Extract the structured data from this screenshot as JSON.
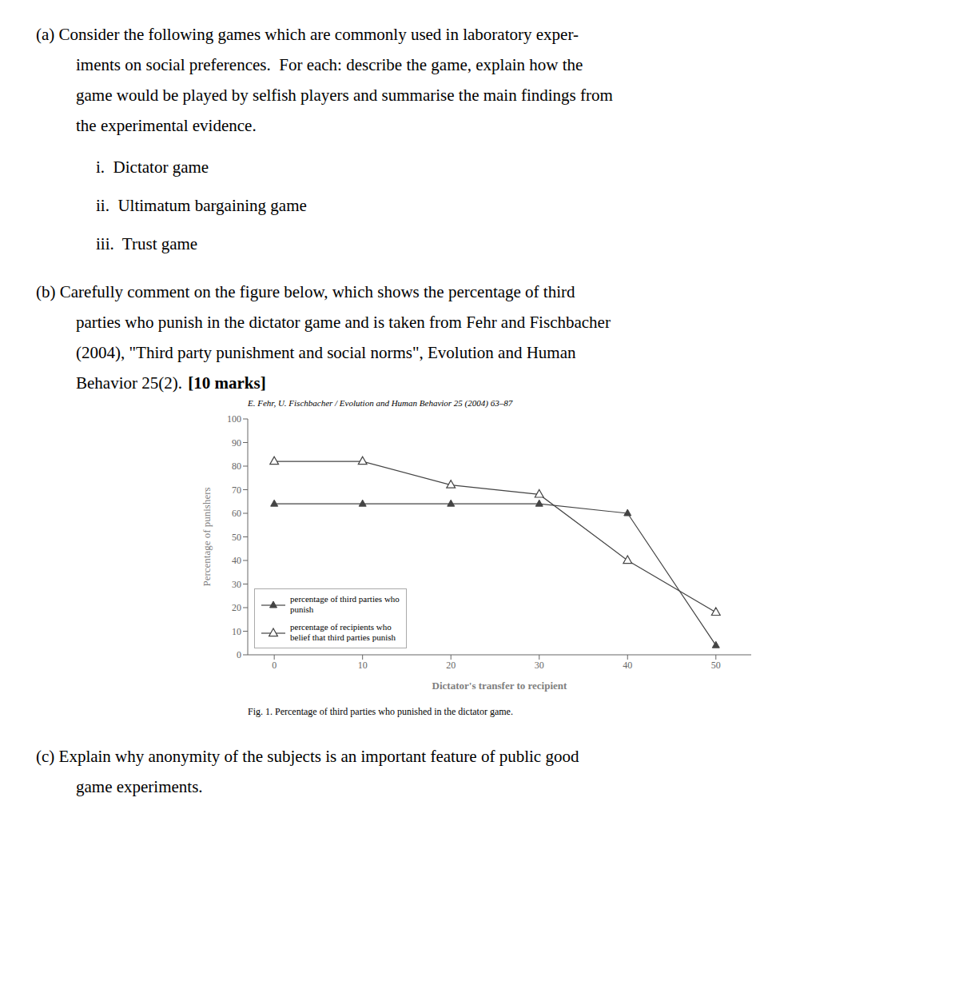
{
  "chart_data": {
    "type": "line",
    "title": "E. Fehr, U. Fischbacher / Evolution and Human Behavior 25 (2004) 63–87",
    "x_label": "Dictator's transfer to recipient",
    "y_label": "Percentage of punishers",
    "x": [
      0,
      10,
      20,
      30,
      40,
      50
    ],
    "series": [
      {
        "name": "percentage of third parties who\npunish",
        "color": "#444444",
        "marker": "triangle",
        "values": [
          64,
          64,
          64,
          64,
          60,
          4
        ]
      },
      {
        "name": "percentage of recipients who\nbelief that third parties punish",
        "color": "#444444",
        "marker": "open_triangle",
        "values": [
          82,
          82,
          72,
          68,
          40,
          18
        ]
      }
    ],
    "xlim": [
      -3,
      54
    ],
    "xticks": [
      0,
      10,
      20,
      30,
      40,
      50
    ],
    "ylim": [
      0,
      100
    ],
    "yticks": [
      0,
      10,
      20,
      30,
      40,
      50,
      60,
      70,
      80,
      90,
      100
    ],
    "grid": false,
    "legend": "lower left",
    "annotations": [
      "(a) Consider the following games which are commonly used in laboratory exper-",
      "iments on social preferences.  For each: describe the game, explain how the",
      "game would be played by selfish players and summarise the main findings from",
      "the experimental evidence.",
      "i.  Dictator game",
      "ii.  Ultimatum bargaining game",
      "iii.  Trust game",
      "(b) Carefully comment on the figure below, which shows the percentage of third",
      "parties who punish in the dictator game and is taken from Fehr and Fischbacher",
      "(2004), \"Third party punishment and social norms\", Evolution and Human",
      "Behavior 25(2).",
      "[10 marks]",
      "Fig. 1. Percentage of third parties who punished in the dictator game.",
      "(c) Explain why anonymity of the subjects is an important feature of public good",
      "game experiments."
    ]
  }
}
